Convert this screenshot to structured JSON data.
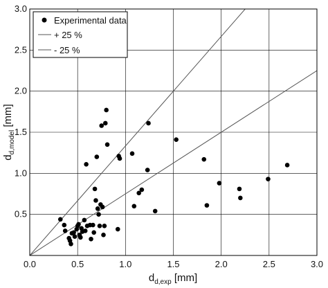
{
  "chart_data": {
    "type": "scatter",
    "xlabel": {
      "main": "d",
      "sub": "d,exp",
      "unit": " [mm]"
    },
    "ylabel": {
      "main": "d",
      "sub": "d,model",
      "unit": " [mm]"
    },
    "xlim": [
      0,
      3
    ],
    "ylim": [
      0,
      3
    ],
    "xticks": [
      "0.0",
      "0.5",
      "1.0",
      "1.5",
      "2.0",
      "2.5",
      "3.0"
    ],
    "yticks": [
      "0.5",
      "1.0",
      "1.5",
      "2.0",
      "2.5",
      "3.0"
    ],
    "grid": true,
    "legend": {
      "position": "top-left",
      "entries": [
        "Experimental data",
        "+ 25 %",
        "- 25 %"
      ]
    },
    "series": [
      {
        "name": "Experimental data",
        "kind": "scatter",
        "color": "#000000",
        "points": [
          [
            0.32,
            0.44
          ],
          [
            0.36,
            0.37
          ],
          [
            0.37,
            0.3
          ],
          [
            0.41,
            0.21
          ],
          [
            0.42,
            0.18
          ],
          [
            0.43,
            0.14
          ],
          [
            0.44,
            0.27
          ],
          [
            0.46,
            0.28
          ],
          [
            0.47,
            0.23
          ],
          [
            0.49,
            0.32
          ],
          [
            0.5,
            0.36
          ],
          [
            0.51,
            0.38
          ],
          [
            0.52,
            0.25
          ],
          [
            0.53,
            0.22
          ],
          [
            0.54,
            0.33
          ],
          [
            0.55,
            0.29
          ],
          [
            0.57,
            0.43
          ],
          [
            0.58,
            0.3
          ],
          [
            0.59,
            1.11
          ],
          [
            0.6,
            0.36
          ],
          [
            0.63,
            0.37
          ],
          [
            0.64,
            0.2
          ],
          [
            0.66,
            0.37
          ],
          [
            0.67,
            0.28
          ],
          [
            0.68,
            0.81
          ],
          [
            0.69,
            0.67
          ],
          [
            0.7,
            1.2
          ],
          [
            0.71,
            0.57
          ],
          [
            0.72,
            0.5
          ],
          [
            0.73,
            0.36
          ],
          [
            0.74,
            0.62
          ],
          [
            0.75,
            1.58
          ],
          [
            0.76,
            0.59
          ],
          [
            0.77,
            0.25
          ],
          [
            0.78,
            0.36
          ],
          [
            0.79,
            1.61
          ],
          [
            0.8,
            1.77
          ],
          [
            0.81,
            1.35
          ],
          [
            0.92,
            0.32
          ],
          [
            0.93,
            1.21
          ],
          [
            0.94,
            1.18
          ],
          [
            1.07,
            1.24
          ],
          [
            1.09,
            0.6
          ],
          [
            1.14,
            0.76
          ],
          [
            1.17,
            0.8
          ],
          [
            1.23,
            1.04
          ],
          [
            1.24,
            1.61
          ],
          [
            1.31,
            0.54
          ],
          [
            1.53,
            1.41
          ],
          [
            1.82,
            1.17
          ],
          [
            1.85,
            0.61
          ],
          [
            1.98,
            0.88
          ],
          [
            2.19,
            0.81
          ],
          [
            2.2,
            0.7
          ],
          [
            2.49,
            0.93
          ],
          [
            2.69,
            1.1
          ]
        ]
      },
      {
        "name": "+ 25 %",
        "kind": "line",
        "color": "#555555",
        "factor": 1.333
      },
      {
        "name": "- 25 %",
        "kind": "line",
        "color": "#555555",
        "factor": 0.75
      }
    ]
  }
}
